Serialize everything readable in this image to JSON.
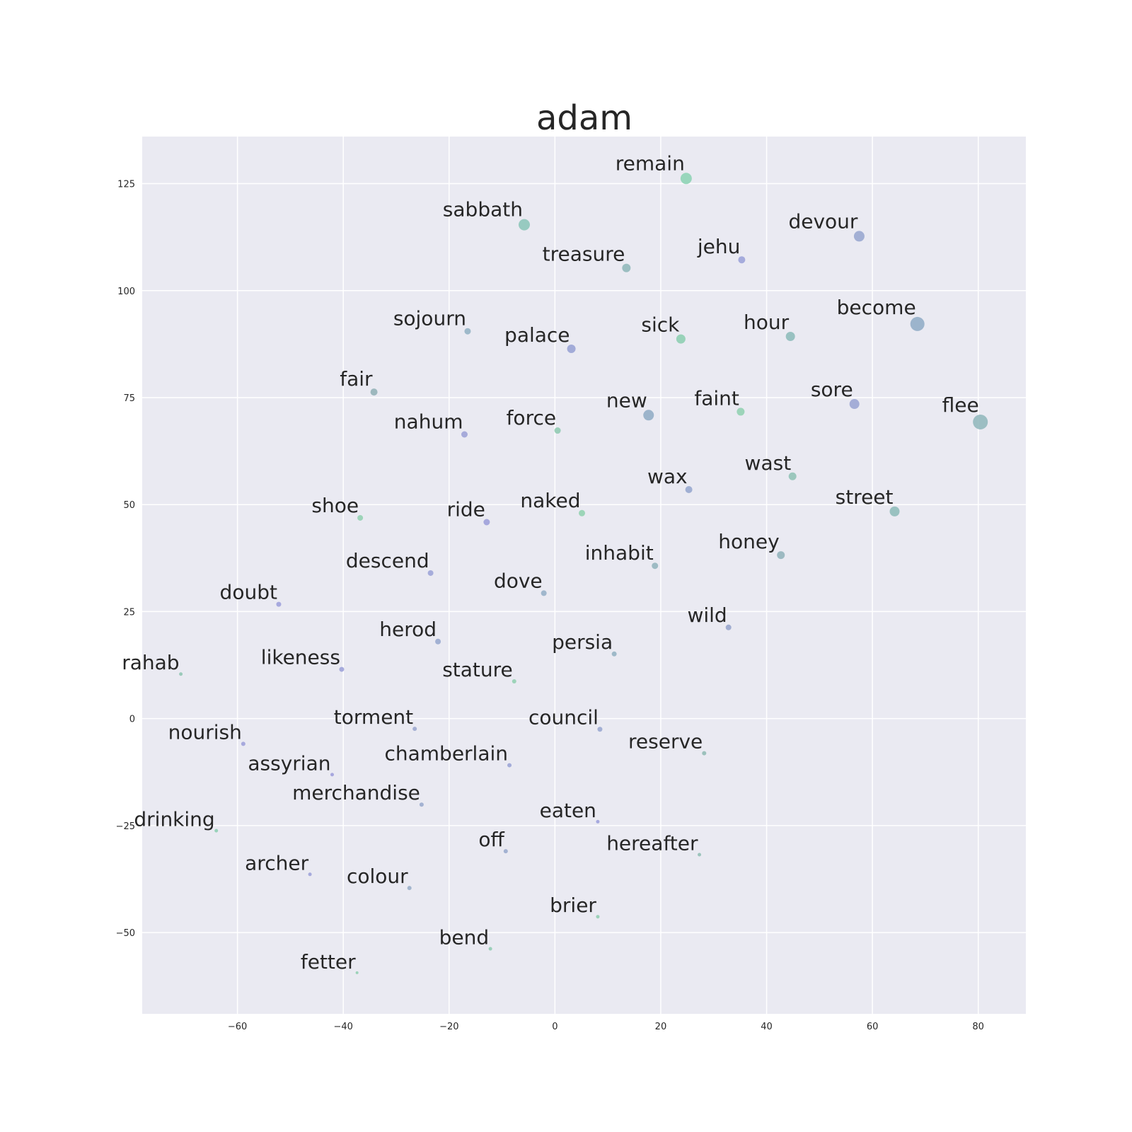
{
  "chart_data": {
    "type": "scatter",
    "title": "adam",
    "xlabel": "",
    "ylabel": "",
    "xlim": [
      -78,
      89
    ],
    "ylim": [
      -69,
      136
    ],
    "xticks": [
      -60,
      -40,
      -20,
      0,
      20,
      40,
      60,
      80
    ],
    "yticks": [
      -50,
      -25,
      0,
      25,
      50,
      75,
      100,
      125
    ],
    "xtick_labels": [
      "−60",
      "−40",
      "−20",
      "0",
      "20",
      "40",
      "60",
      "80"
    ],
    "ytick_labels": [
      "−50",
      "−25",
      "0",
      "25",
      "50",
      "75",
      "100",
      "125"
    ],
    "grid": true,
    "background": "#eaeaf2",
    "grid_color": "#ffffff",
    "points": [
      {
        "label": "remain",
        "x": 24.8,
        "y": 126.2,
        "size": 16,
        "color": "#8fd4b6"
      },
      {
        "label": "sabbath",
        "x": -5.8,
        "y": 115.4,
        "size": 16,
        "color": "#8ec7ba"
      },
      {
        "label": "devour",
        "x": 57.5,
        "y": 112.7,
        "size": 15,
        "color": "#9aa8d0"
      },
      {
        "label": "treasure",
        "x": 13.5,
        "y": 105.3,
        "size": 12,
        "color": "#92b9bb"
      },
      {
        "label": "jehu",
        "x": 35.3,
        "y": 107.2,
        "size": 10,
        "color": "#9da4d9"
      },
      {
        "label": "become",
        "x": 68.5,
        "y": 92.2,
        "size": 20,
        "color": "#93aec8"
      },
      {
        "label": "sojourn",
        "x": -16.5,
        "y": 90.5,
        "size": 9,
        "color": "#96b4c5"
      },
      {
        "label": "palace",
        "x": 3.1,
        "y": 86.4,
        "size": 12,
        "color": "#9aa4d5"
      },
      {
        "label": "sick",
        "x": 23.8,
        "y": 88.7,
        "size": 13,
        "color": "#8fcfb3"
      },
      {
        "label": "hour",
        "x": 44.5,
        "y": 89.3,
        "size": 13,
        "color": "#8fbdbb"
      },
      {
        "label": "fair",
        "x": -34.2,
        "y": 76.3,
        "size": 10,
        "color": "#95b2b8"
      },
      {
        "label": "new",
        "x": 17.7,
        "y": 70.9,
        "size": 15,
        "color": "#94aec6"
      },
      {
        "label": "faint",
        "x": 35.1,
        "y": 71.7,
        "size": 11,
        "color": "#94d1b3"
      },
      {
        "label": "sore",
        "x": 56.6,
        "y": 73.5,
        "size": 14,
        "color": "#9ca6d4"
      },
      {
        "label": "flee",
        "x": 80.4,
        "y": 69.3,
        "size": 21,
        "color": "#93b9be"
      },
      {
        "label": "nahum",
        "x": -17.1,
        "y": 66.4,
        "size": 9,
        "color": "#9ea3d7"
      },
      {
        "label": "force",
        "x": 0.5,
        "y": 67.3,
        "size": 9,
        "color": "#91cbb3"
      },
      {
        "label": "wax",
        "x": 25.3,
        "y": 53.5,
        "size": 10,
        "color": "#98a9cf"
      },
      {
        "label": "wast",
        "x": 44.9,
        "y": 56.6,
        "size": 11,
        "color": "#92c3b7"
      },
      {
        "label": "shoe",
        "x": -36.8,
        "y": 46.9,
        "size": 8,
        "color": "#95d1b3"
      },
      {
        "label": "ride",
        "x": -12.9,
        "y": 45.9,
        "size": 9,
        "color": "#9ea1da"
      },
      {
        "label": "naked",
        "x": 5.1,
        "y": 48.0,
        "size": 9,
        "color": "#93d3b1"
      },
      {
        "label": "street",
        "x": 64.2,
        "y": 48.4,
        "size": 14,
        "color": "#90bcba"
      },
      {
        "label": "inhabit",
        "x": 18.9,
        "y": 35.7,
        "size": 9,
        "color": "#95b6bf"
      },
      {
        "label": "honey",
        "x": 42.7,
        "y": 38.2,
        "size": 11,
        "color": "#95b5bc"
      },
      {
        "label": "descend",
        "x": -23.5,
        "y": 34.0,
        "size": 8,
        "color": "#9ea5d8"
      },
      {
        "label": "dove",
        "x": -2.1,
        "y": 29.3,
        "size": 8,
        "color": "#98b1c9"
      },
      {
        "label": "doubt",
        "x": -52.2,
        "y": 26.7,
        "size": 7,
        "color": "#a0a2dc"
      },
      {
        "label": "wild",
        "x": 32.8,
        "y": 21.3,
        "size": 8,
        "color": "#98a5cc"
      },
      {
        "label": "herod",
        "x": -22.1,
        "y": 18.0,
        "size": 8,
        "color": "#9aabcf"
      },
      {
        "label": "persia",
        "x": 11.2,
        "y": 15.1,
        "size": 7,
        "color": "#96b4c3"
      },
      {
        "label": "rahab",
        "x": -70.7,
        "y": 10.4,
        "size": 5,
        "color": "#92c7b4"
      },
      {
        "label": "likeness",
        "x": -40.3,
        "y": 11.5,
        "size": 7,
        "color": "#9ea3d9"
      },
      {
        "label": "stature",
        "x": -7.7,
        "y": 8.7,
        "size": 6,
        "color": "#95d0b2"
      },
      {
        "label": "torment",
        "x": -26.5,
        "y": -2.4,
        "size": 6,
        "color": "#9ca9cf"
      },
      {
        "label": "council",
        "x": 8.5,
        "y": -2.5,
        "size": 7,
        "color": "#9ba8d0"
      },
      {
        "label": "nourish",
        "x": -58.9,
        "y": -5.9,
        "size": 6,
        "color": "#a0a2da"
      },
      {
        "label": "reserve",
        "x": 28.2,
        "y": -8.1,
        "size": 6,
        "color": "#94bdb6"
      },
      {
        "label": "assyrian",
        "x": -42.1,
        "y": -13.1,
        "size": 5,
        "color": "#a0a0dc"
      },
      {
        "label": "chamberlain",
        "x": -8.6,
        "y": -10.9,
        "size": 6,
        "color": "#9ca5d6"
      },
      {
        "label": "merchandise",
        "x": -25.2,
        "y": -20.1,
        "size": 6,
        "color": "#9bacce"
      },
      {
        "label": "eaten",
        "x": 8.1,
        "y": -24.1,
        "size": 5,
        "color": "#9fa2dc"
      },
      {
        "label": "drinking",
        "x": -64.0,
        "y": -26.2,
        "size": 5,
        "color": "#8fcfb4"
      },
      {
        "label": "off",
        "x": -9.3,
        "y": -31.0,
        "size": 6,
        "color": "#9bacce"
      },
      {
        "label": "hereafter",
        "x": 27.3,
        "y": -31.8,
        "size": 5,
        "color": "#93c0b6"
      },
      {
        "label": "archer",
        "x": -46.3,
        "y": -36.4,
        "size": 5,
        "color": "#9fa3d9"
      },
      {
        "label": "colour",
        "x": -27.5,
        "y": -39.6,
        "size": 6,
        "color": "#9aafc9"
      },
      {
        "label": "brier",
        "x": 8.1,
        "y": -46.3,
        "size": 5,
        "color": "#93ceb3"
      },
      {
        "label": "bend",
        "x": -12.2,
        "y": -53.8,
        "size": 5,
        "color": "#92ccb4"
      },
      {
        "label": "fetter",
        "x": -37.4,
        "y": -59.4,
        "size": 4,
        "color": "#94cfb3"
      }
    ]
  }
}
